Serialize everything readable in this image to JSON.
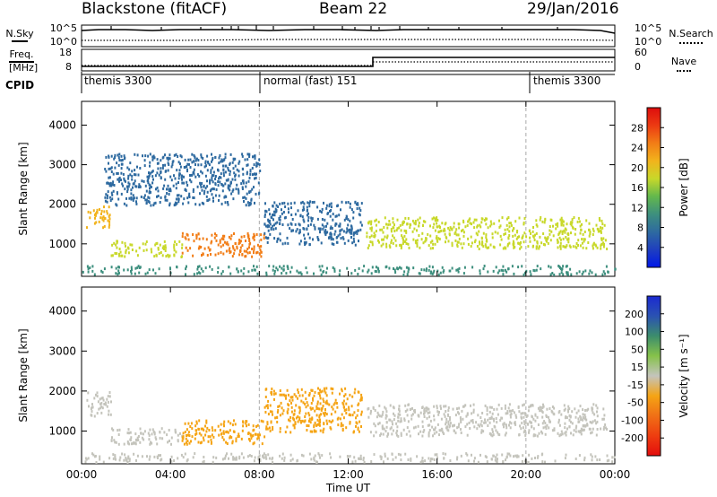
{
  "header": {
    "station": "Blackstone (fitACF)",
    "beam": "Beam 22",
    "date": "29/Jan/2016"
  },
  "sky_panel": {
    "left_label": "N.Sky",
    "right_label": "N.Search",
    "left_ticks": [
      "10^5",
      "10^0"
    ],
    "right_ticks": [
      "10^5",
      "10^0"
    ]
  },
  "freq_panel": {
    "left_label_line1": "Freq.",
    "left_label_line2": "[MHz]",
    "right_label": "Nave",
    "left_ticks": [
      "18",
      "8"
    ],
    "right_ticks": [
      "60",
      "0"
    ]
  },
  "cpid": {
    "label": "CPID",
    "modes": [
      {
        "name": "themis 3300",
        "start_hour": 0
      },
      {
        "name": "normal (fast) 151",
        "start_hour": 8
      },
      {
        "name": "themis 3300",
        "start_hour": 20
      }
    ]
  },
  "colors": {
    "scatter_blue": "#1f3fbf",
    "ground_scatter_gray": "#c4c4bc",
    "grid_dash": "#aaaaaa"
  },
  "chart_data": [
    {
      "type": "heatmap",
      "title": "Power",
      "xlabel": "",
      "ylabel": "Slant Range [km]",
      "xlim": [
        0,
        24
      ],
      "ylim": [
        180,
        4600
      ],
      "x_ticks": [
        0,
        4,
        8,
        12,
        16,
        20,
        24
      ],
      "y_ticks": [
        1000,
        2000,
        3000,
        4000
      ],
      "y_tick_labels": [
        "1000",
        "2000",
        "3000",
        "4000"
      ],
      "colorbar": {
        "label": "Power [dB]",
        "range": [
          0,
          32
        ],
        "ticks": [
          "4",
          "8",
          "12",
          "16",
          "20",
          "24",
          "28"
        ],
        "stops": [
          "#0018e8",
          "#1f3fbf",
          "#2e6aa0",
          "#3d8f7e",
          "#63b84d",
          "#c8d82a",
          "#f2b31c",
          "#f27d16",
          "#ec3a12",
          "#dd0d0d"
        ]
      },
      "regions": [
        {
          "hours": [
            0.2,
            1.3
          ],
          "range_km": [
            1400,
            2000
          ],
          "value_db": 20
        },
        {
          "hours": [
            1.3,
            4.5
          ],
          "range_km": [
            700,
            1100
          ],
          "value_db": 18
        },
        {
          "hours": [
            4.5,
            8.2
          ],
          "range_km": [
            700,
            1300
          ],
          "value_db": 24
        },
        {
          "hours": [
            8.2,
            12.6
          ],
          "range_km": [
            1000,
            2100
          ],
          "value_db": 8
        },
        {
          "hours": [
            12.8,
            23.6
          ],
          "range_km": [
            900,
            1700
          ],
          "value_db": 18
        },
        {
          "hours": [
            1.0,
            8.0
          ],
          "range_km": [
            2000,
            3300
          ],
          "value_db": 6
        }
      ]
    },
    {
      "type": "heatmap",
      "title": "Velocity",
      "xlabel": "Time UT",
      "ylabel": "Slant Range [km]",
      "xlim": [
        0,
        24
      ],
      "ylim": [
        180,
        4600
      ],
      "x_ticks": [
        0,
        4,
        8,
        12,
        16,
        20,
        24
      ],
      "x_tick_labels": [
        "00:00",
        "04:00",
        "08:00",
        "12:00",
        "16:00",
        "20:00",
        "00:00"
      ],
      "y_ticks": [
        1000,
        2000,
        3000,
        4000
      ],
      "y_tick_labels": [
        "1000",
        "2000",
        "3000",
        "4000"
      ],
      "colorbar": {
        "label": "Velocity [m s⁻¹]",
        "range": [
          -250,
          250
        ],
        "ticks": [
          "200",
          "100",
          "50",
          "15",
          "-15",
          "-50",
          "-100",
          "-200"
        ],
        "stops": [
          "#e30d0d",
          "#ee3d10",
          "#f07016",
          "#f5a414",
          "#c4c4bc",
          "#86c24a",
          "#3c8d6c",
          "#2a52b2",
          "#1b2ad1"
        ]
      },
      "regions": [
        {
          "hours": [
            0.2,
            1.3
          ],
          "range_km": [
            1400,
            2000
          ],
          "velocity": 0
        },
        {
          "hours": [
            1.3,
            4.5
          ],
          "range_km": [
            700,
            1100
          ],
          "velocity": 0
        },
        {
          "hours": [
            4.5,
            8.2
          ],
          "range_km": [
            700,
            1300
          ],
          "velocity": -60
        },
        {
          "hours": [
            8.2,
            12.6
          ],
          "range_km": [
            1000,
            2100
          ],
          "velocity": -60
        },
        {
          "hours": [
            12.8,
            23.6
          ],
          "range_km": [
            900,
            1700
          ],
          "velocity": 0
        }
      ]
    }
  ]
}
